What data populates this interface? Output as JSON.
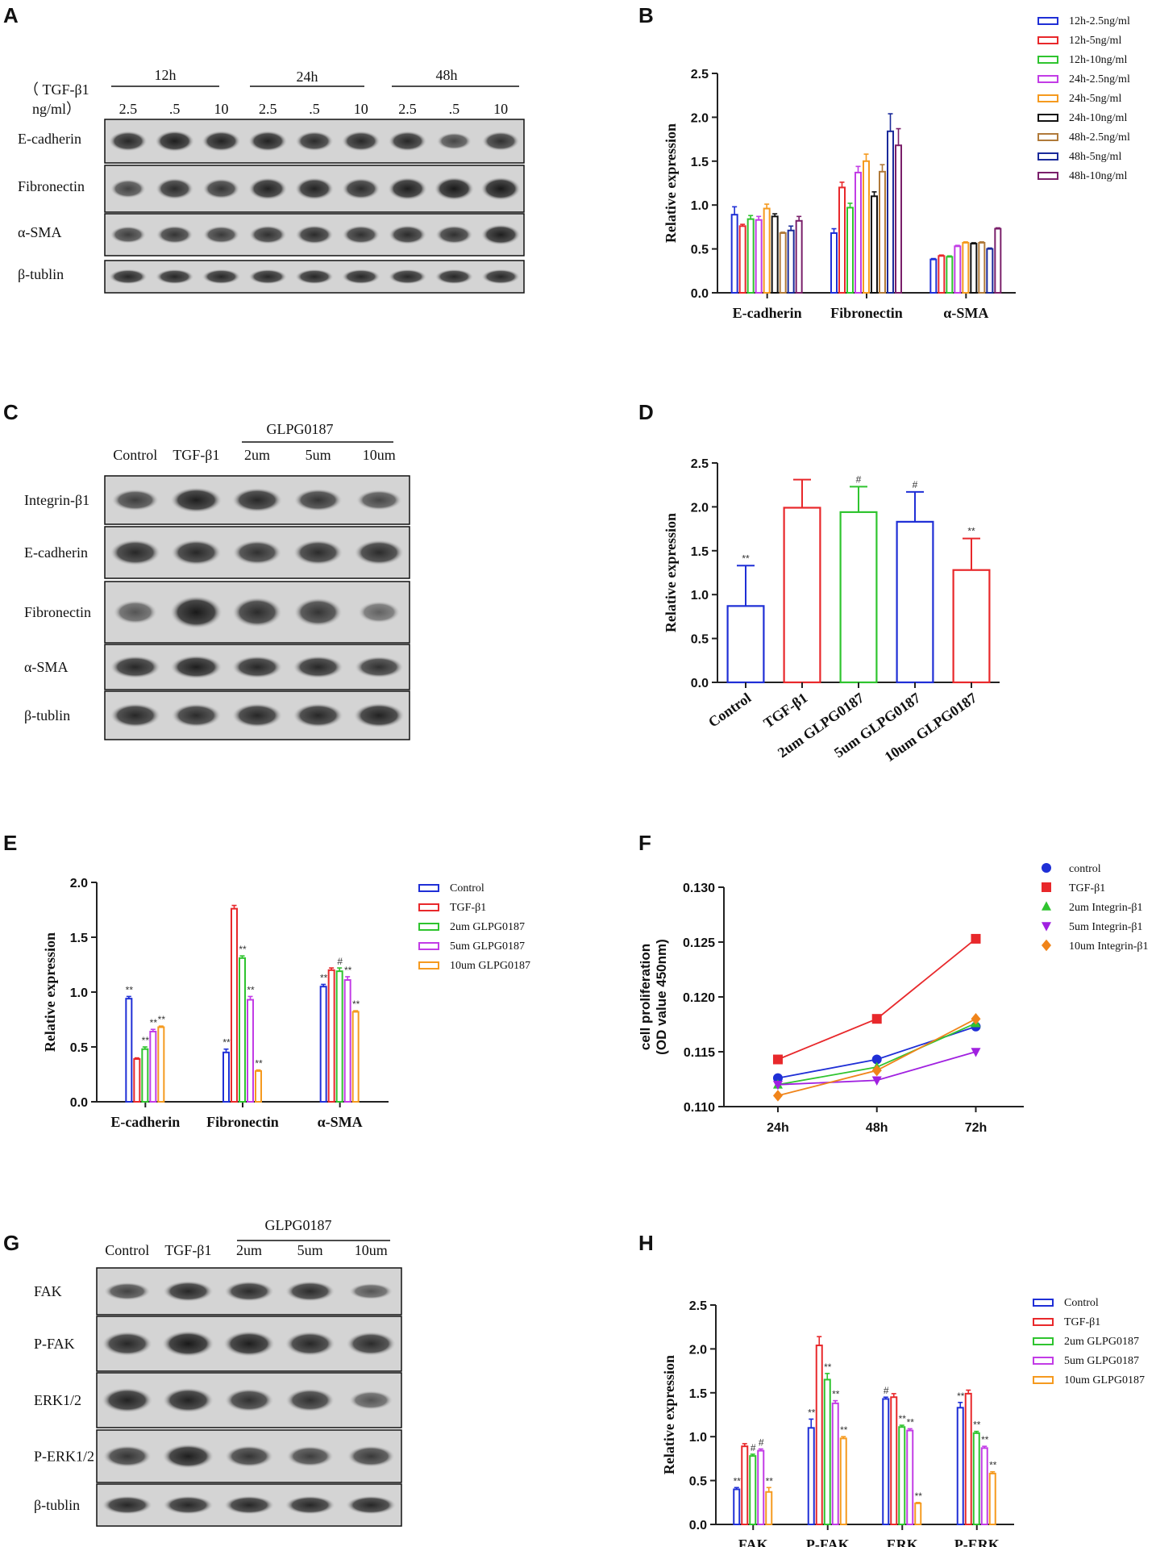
{
  "panels": {
    "a": {
      "label": "A",
      "group_labels": [
        "12h",
        "24h",
        "48h"
      ],
      "dose_header": [
        "（ TGF-β1",
        "ng/ml）"
      ],
      "doses": [
        "2.5",
        ".5",
        "10",
        "2.5",
        ".5",
        "10",
        "2.5",
        ".5",
        "10"
      ],
      "rows": [
        "E-cadherin",
        "Fibronectin",
        "α-SMA",
        "β-tublin"
      ]
    },
    "c": {
      "label": "C",
      "lanes": [
        "Control",
        "TGF-β1",
        "2um",
        "5um",
        "10um"
      ],
      "drug": "GLPG0187",
      "rows": [
        "Integrin-β1",
        "E-cadherin",
        "Fibronectin",
        "α-SMA",
        "β-tublin"
      ]
    },
    "g": {
      "label": "G",
      "lanes": [
        "Control",
        "TGF-β1",
        "2um",
        "5um",
        "10um"
      ],
      "drug": "GLPG0187",
      "rows": [
        "FAK",
        "P-FAK",
        "ERK1/2",
        "P-ERK1/2",
        "β-tublin"
      ]
    }
  },
  "colors": {
    "blue": "#1f2fd6",
    "red": "#e8282b",
    "green": "#2fc42f",
    "purple": "#c23ce6",
    "orange": "#f59a1f",
    "black": "#111111",
    "brown": "#b07a3a",
    "navy": "#1a2a9a",
    "plum": "#7a1f6a"
  },
  "chart_data": [
    {
      "id": "b",
      "label": "B",
      "type": "bar",
      "ylabel": "Relative expression",
      "ylim": [
        0,
        2.5
      ],
      "yticks": [
        "0.0",
        "0.5",
        "1.0",
        "1.5",
        "2.0",
        "2.5"
      ],
      "categories": [
        "E-cadherin",
        "Fibronectin",
        "α-SMA"
      ],
      "legend": "right",
      "series": [
        {
          "name": "12h-2.5ng/ml",
          "color": "#1f2fd6",
          "values": [
            0.89,
            0.68,
            0.38
          ],
          "err": [
            0.09,
            0.05,
            0.01
          ]
        },
        {
          "name": "12h-5ng/ml",
          "color": "#e8282b",
          "values": [
            0.76,
            1.2,
            0.42
          ],
          "err": [
            0.02,
            0.06,
            0.01
          ]
        },
        {
          "name": "12h-10ng/ml",
          "color": "#2fc42f",
          "values": [
            0.84,
            0.97,
            0.41
          ],
          "err": [
            0.04,
            0.05,
            0.01
          ]
        },
        {
          "name": "24h-2.5ng/ml",
          "color": "#c23ce6",
          "values": [
            0.83,
            1.37,
            0.53
          ],
          "err": [
            0.04,
            0.07,
            0.01
          ]
        },
        {
          "name": "24h-5ng/ml",
          "color": "#f59a1f",
          "values": [
            0.96,
            1.5,
            0.57
          ],
          "err": [
            0.05,
            0.08,
            0.01
          ]
        },
        {
          "name": "24h-10ng/ml",
          "color": "#111111",
          "values": [
            0.87,
            1.1,
            0.56
          ],
          "err": [
            0.03,
            0.05,
            0.01
          ]
        },
        {
          "name": "48h-2.5ng/ml",
          "color": "#b07a3a",
          "values": [
            0.68,
            1.38,
            0.57
          ],
          "err": [
            0.01,
            0.08,
            0.01
          ]
        },
        {
          "name": "48h-5ng/ml",
          "color": "#1a2a9a",
          "values": [
            0.71,
            1.84,
            0.5
          ],
          "err": [
            0.05,
            0.2,
            0.01
          ]
        },
        {
          "name": "48h-10ng/ml",
          "color": "#7a1f6a",
          "values": [
            0.82,
            1.68,
            0.73
          ],
          "err": [
            0.05,
            0.19,
            0.01
          ]
        }
      ]
    },
    {
      "id": "d",
      "label": "D",
      "type": "bar",
      "ylabel": "Relative expression",
      "ylim": [
        0,
        2.5
      ],
      "yticks": [
        "0.0",
        "0.5",
        "1.0",
        "1.5",
        "2.0",
        "2.5"
      ],
      "categories": [
        "Control",
        "TGF-β1",
        "2um GLPG0187",
        "5um GLPG0187",
        "10um GLPG0187"
      ],
      "values": [
        0.87,
        1.99,
        1.94,
        1.83,
        1.28
      ],
      "err": [
        0.46,
        0.32,
        0.29,
        0.34,
        0.36
      ],
      "colors": [
        "#1f2fd6",
        "#e8282b",
        "#2fc42f",
        "#1f2fd6",
        "#e8282b"
      ],
      "sig": [
        "**",
        "",
        "#",
        "#",
        "**"
      ]
    },
    {
      "id": "e",
      "label": "E",
      "type": "bar",
      "ylabel": "Relative expression",
      "ylim": [
        0,
        2.0
      ],
      "yticks": [
        "0.0",
        "0.5",
        "1.0",
        "1.5",
        "2.0"
      ],
      "categories": [
        "E-cadherin",
        "Fibronectin",
        "α-SMA"
      ],
      "legend": "right",
      "series": [
        {
          "name": "Control",
          "color": "#1f2fd6",
          "values": [
            0.94,
            0.45,
            1.05
          ],
          "err": [
            0.02,
            0.03,
            0.02
          ],
          "sig": [
            "**",
            "**",
            "**"
          ]
        },
        {
          "name": "TGF-β1",
          "color": "#e8282b",
          "values": [
            0.39,
            1.76,
            1.2
          ],
          "err": [
            0.01,
            0.03,
            0.02
          ],
          "sig": [
            "",
            "",
            ""
          ]
        },
        {
          "name": "2um GLPG0187",
          "color": "#2fc42f",
          "values": [
            0.48,
            1.31,
            1.19
          ],
          "err": [
            0.02,
            0.02,
            0.03
          ],
          "sig": [
            "**",
            "**",
            "#"
          ]
        },
        {
          "name": "5um GLPG0187",
          "color": "#c23ce6",
          "values": [
            0.64,
            0.93,
            1.11
          ],
          "err": [
            0.02,
            0.03,
            0.03
          ],
          "sig": [
            "**",
            "**",
            "**"
          ]
        },
        {
          "name": "10um GLPG0187",
          "color": "#f59a1f",
          "values": [
            0.68,
            0.28,
            0.82
          ],
          "err": [
            0.01,
            0.01,
            0.01
          ],
          "sig": [
            "**",
            "**",
            "**"
          ]
        }
      ]
    },
    {
      "id": "f",
      "label": "F",
      "type": "line",
      "ylabel": [
        "cell proliferation",
        "(OD value 450nm)"
      ],
      "ylim": [
        0.11,
        0.13
      ],
      "yticks": [
        "0.110",
        "0.115",
        "0.120",
        "0.125",
        "0.130"
      ],
      "x": [
        "24h",
        "48h",
        "72h"
      ],
      "legend": "right",
      "series": [
        {
          "name": "control",
          "color": "#1f2fd6",
          "marker": "circle",
          "values": [
            0.1126,
            0.1143,
            0.1173
          ]
        },
        {
          "name": "TGF-β1",
          "color": "#e8282b",
          "marker": "square",
          "values": [
            0.1143,
            0.118,
            0.1253
          ]
        },
        {
          "name": "2um Integrin-β1",
          "color": "#2fc42f",
          "marker": "triangle",
          "values": [
            0.112,
            0.1136,
            0.1176
          ]
        },
        {
          "name": "5um Integrin-β1",
          "color": "#a020e0",
          "marker": "tridown",
          "values": [
            0.112,
            0.1124,
            0.115
          ]
        },
        {
          "name": "10um Integrin-β1",
          "color": "#f0841a",
          "marker": "diamond",
          "values": [
            0.111,
            0.1133,
            0.118
          ]
        }
      ]
    },
    {
      "id": "h",
      "label": "H",
      "type": "bar",
      "ylabel": "Relative expression",
      "ylim": [
        0,
        2.5
      ],
      "yticks": [
        "0.0",
        "0.5",
        "1.0",
        "1.5",
        "2.0",
        "2.5"
      ],
      "categories": [
        "FAK",
        "P-FAK",
        "ERK",
        "P-ERK"
      ],
      "legend": "right",
      "series": [
        {
          "name": "Control",
          "color": "#1f2fd6",
          "values": [
            0.4,
            1.1,
            1.43,
            1.33
          ],
          "err": [
            0.02,
            0.1,
            0.02,
            0.06
          ],
          "sig": [
            "**",
            "**",
            "#",
            "**"
          ]
        },
        {
          "name": "TGF-β1",
          "color": "#e8282b",
          "values": [
            0.89,
            2.04,
            1.45,
            1.49
          ],
          "err": [
            0.03,
            0.1,
            0.04,
            0.04
          ],
          "sig": [
            "",
            "",
            "",
            ""
          ]
        },
        {
          "name": "2um GLPG0187",
          "color": "#2fc42f",
          "values": [
            0.78,
            1.65,
            1.11,
            1.04
          ],
          "err": [
            0.02,
            0.07,
            0.02,
            0.02
          ],
          "sig": [
            "#",
            "**",
            "**",
            "**"
          ]
        },
        {
          "name": "5um GLPG0187",
          "color": "#c23ce6",
          "values": [
            0.84,
            1.38,
            1.07,
            0.87
          ],
          "err": [
            0.02,
            0.03,
            0.02,
            0.02
          ],
          "sig": [
            "#",
            "**",
            "**",
            "**"
          ]
        },
        {
          "name": "10um GLPG0187",
          "color": "#f59a1f",
          "values": [
            0.37,
            0.98,
            0.24,
            0.58
          ],
          "err": [
            0.05,
            0.02,
            0.01,
            0.02
          ],
          "sig": [
            "**",
            "**",
            "**",
            "**"
          ]
        }
      ]
    }
  ]
}
